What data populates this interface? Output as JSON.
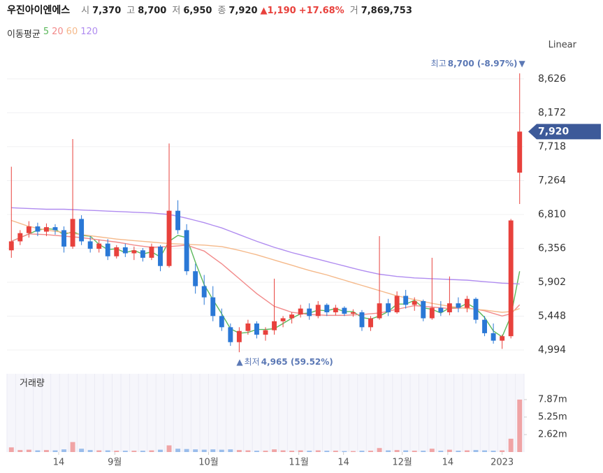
{
  "header": {
    "name": "우진아이엔에스",
    "fields": [
      {
        "label": "시",
        "value": "7,370"
      },
      {
        "label": "고",
        "value": "8,700"
      },
      {
        "label": "저",
        "value": "6,950"
      },
      {
        "label": "종",
        "value": "7,920"
      }
    ],
    "change": "▲1,190",
    "change_pct": "+17.68%",
    "volume_label": "거",
    "volume": "7,869,753"
  },
  "ma_legend_label": "이동평균",
  "scale_button": "Linear",
  "chart_data": {
    "type": "candlestick",
    "open": [
      6330,
      6450,
      6560,
      6650,
      6580,
      6640,
      6600,
      6380,
      6750,
      6450,
      6350,
      6420,
      6250,
      6370,
      6290,
      6330,
      6230,
      6380,
      6120,
      6860,
      6600,
      6050,
      5850,
      5700,
      5450,
      5300,
      5100,
      5250,
      5350,
      5200,
      5260,
      5380,
      5420,
      5470,
      5550,
      5450,
      5600,
      5500,
      5560,
      5480,
      5500,
      5300,
      5420,
      5620,
      5500,
      5720,
      5600,
      5650,
      5420,
      5560,
      5500,
      5620,
      5560,
      5680,
      5400,
      5220,
      5120,
      5180,
      7370
    ],
    "high": [
      7450,
      6600,
      6720,
      6700,
      6690,
      6680,
      6650,
      7820,
      6800,
      6520,
      6470,
      6480,
      6400,
      6420,
      6380,
      6360,
      6420,
      6400,
      7760,
      7000,
      6680,
      6150,
      6000,
      5850,
      5550,
      5350,
      5300,
      5400,
      5380,
      5300,
      5950,
      5450,
      5500,
      5600,
      5620,
      5650,
      5620,
      5600,
      5580,
      5540,
      5530,
      5450,
      6520,
      5680,
      5780,
      5800,
      5700,
      5670,
      6230,
      5650,
      5980,
      5700,
      5720,
      5700,
      5450,
      5350,
      5200,
      6750,
      8700
    ],
    "low": [
      6230,
      6400,
      6500,
      6520,
      6520,
      6540,
      6300,
      6350,
      6400,
      6300,
      6300,
      6200,
      6220,
      6240,
      6200,
      6180,
      6200,
      6050,
      6100,
      6550,
      6000,
      5750,
      5600,
      5380,
      5250,
      5050,
      4965,
      5200,
      5150,
      5120,
      5200,
      5300,
      5350,
      5430,
      5400,
      5420,
      5450,
      5460,
      5450,
      5440,
      5250,
      5250,
      5400,
      5450,
      5480,
      5550,
      5520,
      5380,
      5400,
      5450,
      5460,
      5500,
      5500,
      5350,
      5180,
      5080,
      5010,
      5150,
      6950
    ],
    "close": [
      6450,
      6560,
      6650,
      6580,
      6640,
      6600,
      6380,
      6750,
      6450,
      6350,
      6420,
      6250,
      6370,
      6290,
      6330,
      6230,
      6380,
      6120,
      6860,
      6600,
      6050,
      5850,
      5700,
      5450,
      5300,
      5100,
      5250,
      5350,
      5200,
      5260,
      5380,
      5420,
      5470,
      5550,
      5450,
      5600,
      5500,
      5560,
      5480,
      5500,
      5300,
      5420,
      5620,
      5500,
      5720,
      5600,
      5650,
      5420,
      5560,
      5500,
      5620,
      5560,
      5680,
      5400,
      5220,
      5120,
      5180,
      6730,
      7920
    ],
    "up_color": "#e8413c",
    "down_color": "#2a78d6",
    "series": [
      {
        "name": "5",
        "color": "#5cb85c",
        "values": [
          6450,
          6500,
          6550,
          6600,
          6620,
          6610,
          6540,
          6580,
          6530,
          6520,
          6410,
          6340,
          6350,
          6300,
          6330,
          6280,
          6310,
          6240,
          6450,
          6530,
          6500,
          6170,
          5870,
          5670,
          5480,
          5280,
          5220,
          5230,
          5270,
          5270,
          5280,
          5350,
          5420,
          5480,
          5490,
          5530,
          5520,
          5550,
          5510,
          5510,
          5430,
          5410,
          5450,
          5510,
          5610,
          5610,
          5660,
          5560,
          5540,
          5490,
          5560,
          5560,
          5620,
          5550,
          5430,
          5250,
          5170,
          5450,
          6050
        ]
      },
      {
        "name": "20",
        "color": "#f28a8a",
        "values": [
          6450,
          6500,
          6550,
          6545,
          6540,
          6530,
          6520,
          6510,
          6500,
          6485,
          6470,
          6455,
          6440,
          6420,
          6400,
          6385,
          6370,
          6375,
          6380,
          6390,
          6400,
          6360,
          6320,
          6235,
          6150,
          6050,
          5950,
          5850,
          5750,
          5665,
          5580,
          5540,
          5500,
          5485,
          5470,
          5465,
          5460,
          5460,
          5460,
          5465,
          5470,
          5480,
          5490,
          5515,
          5540,
          5565,
          5590,
          5580,
          5570,
          5560,
          5550,
          5555,
          5560,
          5540,
          5520,
          5485,
          5450,
          5480,
          5600
        ]
      },
      {
        "name": "60",
        "color": "#f5b98a",
        "values": [
          6730,
          6690,
          6650,
          6625,
          6600,
          6585,
          6570,
          6555,
          6540,
          6525,
          6510,
          6495,
          6480,
          6470,
          6460,
          6450,
          6440,
          6430,
          6420,
          6415,
          6410,
          6405,
          6400,
          6390,
          6380,
          6355,
          6330,
          6300,
          6270,
          6235,
          6200,
          6165,
          6130,
          6095,
          6060,
          6030,
          6000,
          5965,
          5930,
          5895,
          5860,
          5825,
          5790,
          5755,
          5720,
          5695,
          5670,
          5645,
          5620,
          5600,
          5580,
          5565,
          5550,
          5540,
          5530,
          5515,
          5500,
          5510,
          5550
        ]
      },
      {
        "name": "120",
        "color": "#b08cf0",
        "values": [
          6900,
          6895,
          6890,
          6885,
          6880,
          6880,
          6880,
          6875,
          6870,
          6865,
          6860,
          6855,
          6850,
          6845,
          6840,
          6835,
          6830,
          6820,
          6810,
          6785,
          6760,
          6730,
          6700,
          6665,
          6630,
          6585,
          6540,
          6495,
          6450,
          6410,
          6370,
          6335,
          6300,
          6270,
          6240,
          6210,
          6180,
          6150,
          6120,
          6090,
          6060,
          6035,
          6010,
          5995,
          5980,
          5970,
          5960,
          5955,
          5950,
          5945,
          5940,
          5935,
          5930,
          5920,
          5910,
          5900,
          5890,
          5885,
          5880
        ]
      }
    ],
    "ylim": [
      4770,
      8840
    ],
    "yticks": [
      {
        "value": 4994,
        "label": "4,994"
      },
      {
        "value": 5448,
        "label": "5,448"
      },
      {
        "value": 5902,
        "label": "5,902"
      },
      {
        "value": 6356,
        "label": "6,356"
      },
      {
        "value": 6810,
        "label": "6,810"
      },
      {
        "value": 7264,
        "label": "7,264"
      },
      {
        "value": 7718,
        "label": "7,718"
      },
      {
        "value": 8172,
        "label": "8,172"
      },
      {
        "value": 8626,
        "label": "8,626"
      }
    ],
    "grid": true,
    "xlim": [
      -0.5,
      58.5
    ],
    "xticks": [
      {
        "value": 5.4,
        "label": "14"
      },
      {
        "value": 11.8,
        "label": "9월"
      },
      {
        "value": 22.5,
        "label": "10월"
      },
      {
        "value": 32.8,
        "label": "11월"
      },
      {
        "value": 37.9,
        "label": "14"
      },
      {
        "value": 44.6,
        "label": "12월"
      },
      {
        "value": 49.8,
        "label": "14"
      },
      {
        "value": 56.0,
        "label": "2023"
      }
    ],
    "last_price_label": "7,920",
    "high_annotation": {
      "text": "최고",
      "detail": "8,700 (-8.97%)",
      "arrow": "▼"
    },
    "low_annotation": {
      "arrow": "▲",
      "text": "최저",
      "detail": "4,965 (59.52%)"
    },
    "volume_label": "거래량",
    "volume": [
      700000,
      300000,
      350000,
      250000,
      300000,
      250000,
      400000,
      1500000,
      500000,
      300000,
      250000,
      250000,
      200000,
      200000,
      200000,
      200000,
      250000,
      350000,
      1000000,
      500000,
      450000,
      400000,
      350000,
      400000,
      350000,
      400000,
      300000,
      250000,
      200000,
      200000,
      400000,
      250000,
      200000,
      250000,
      200000,
      250000,
      200000,
      200000,
      150000,
      150000,
      200000,
      200000,
      600000,
      250000,
      300000,
      250000,
      200000,
      200000,
      500000,
      200000,
      350000,
      200000,
      250000,
      300000,
      250000,
      200000,
      250000,
      2000000,
      7869753
    ],
    "volume_ylim": [
      0,
      11740000
    ],
    "volume_yticks": [
      {
        "value": 2620000,
        "label": "2.62m"
      },
      {
        "value": 5250000,
        "label": "5.25m"
      },
      {
        "value": 7870000,
        "label": "7.87m"
      }
    ]
  }
}
